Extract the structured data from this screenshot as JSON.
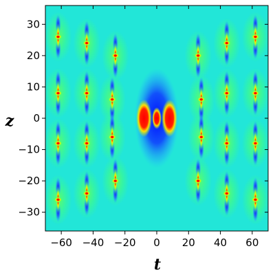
{
  "chart_data": {
    "type": "heatmap",
    "xlabel": "t",
    "ylabel": "z",
    "xlim": [
      -70,
      70
    ],
    "ylim": [
      -36,
      36
    ],
    "x_ticks": [
      -60,
      -40,
      -20,
      0,
      20,
      40,
      60
    ],
    "x_tick_labels": [
      "−60",
      "−40",
      "−20",
      "0",
      "20",
      "40",
      "60"
    ],
    "y_ticks": [
      -30,
      -20,
      -10,
      0,
      10,
      20,
      30
    ],
    "y_tick_labels": [
      "−30",
      "−20",
      "−10",
      "0",
      "10",
      "20",
      "30"
    ],
    "colormap": [
      "#1020ff",
      "#2080ff",
      "#20e0e0",
      "#40ff80",
      "#b0ff20",
      "#ffe000",
      "#ff2000"
    ],
    "background_color": "#22e6d8",
    "peak_color": "#ff0000",
    "central_structure": {
      "t": 0,
      "z": 0
    },
    "peaks": [
      {
        "t": -62,
        "z": 26
      },
      {
        "t": -44,
        "z": 24
      },
      {
        "t": -26,
        "z": 20
      },
      {
        "t": -62,
        "z": 8
      },
      {
        "t": -44,
        "z": 8
      },
      {
        "t": -28,
        "z": 6
      },
      {
        "t": -62,
        "z": -8
      },
      {
        "t": -44,
        "z": -8
      },
      {
        "t": -28,
        "z": -6
      },
      {
        "t": -62,
        "z": -26
      },
      {
        "t": -44,
        "z": -24
      },
      {
        "t": -26,
        "z": -20
      },
      {
        "t": 26,
        "z": 20
      },
      {
        "t": 44,
        "z": 24
      },
      {
        "t": 62,
        "z": 26
      },
      {
        "t": 28,
        "z": 6
      },
      {
        "t": 44,
        "z": 8
      },
      {
        "t": 62,
        "z": 8
      },
      {
        "t": 28,
        "z": -6
      },
      {
        "t": 44,
        "z": -8
      },
      {
        "t": 62,
        "z": -8
      },
      {
        "t": 26,
        "z": -20
      },
      {
        "t": 44,
        "z": -24
      },
      {
        "t": 62,
        "z": -26
      }
    ]
  }
}
